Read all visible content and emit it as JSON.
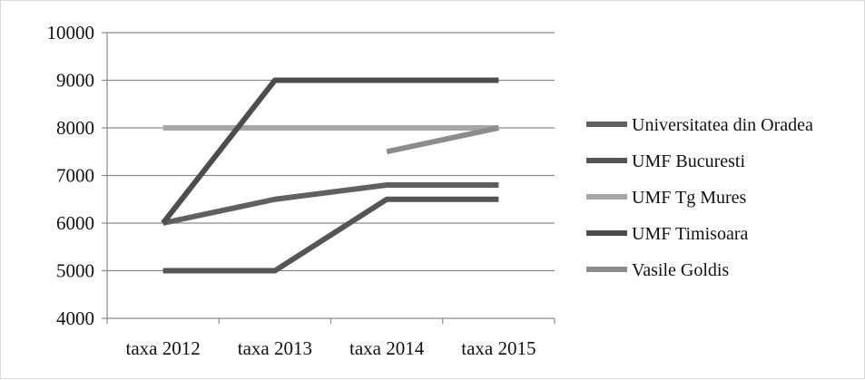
{
  "chart_data": {
    "type": "line",
    "categories": [
      "taxa 2012",
      "taxa 2013",
      "taxa 2014",
      "taxa 2015"
    ],
    "ylim": [
      4000,
      10000
    ],
    "yticks": [
      10000,
      9000,
      8000,
      7000,
      6000,
      5000,
      4000
    ],
    "grid": true,
    "legend_position": "right",
    "series": [
      {
        "name": "Universitatea din Oradea",
        "values": [
          6000,
          6500,
          6800,
          6800
        ],
        "color": "#606060"
      },
      {
        "name": "UMF Bucuresti",
        "values": [
          5000,
          5000,
          6500,
          6500
        ],
        "color": "#555555"
      },
      {
        "name": "UMF Tg Mures",
        "values": [
          8000,
          8000,
          8000,
          8000
        ],
        "color": "#a6a6a6"
      },
      {
        "name": "UMF Timisoara",
        "values": [
          6000,
          9000,
          9000,
          9000
        ],
        "color": "#4d4d4d"
      },
      {
        "name": "Vasile Goldis",
        "values": [
          null,
          null,
          7500,
          8000
        ],
        "color": "#8c8c8c"
      }
    ]
  }
}
